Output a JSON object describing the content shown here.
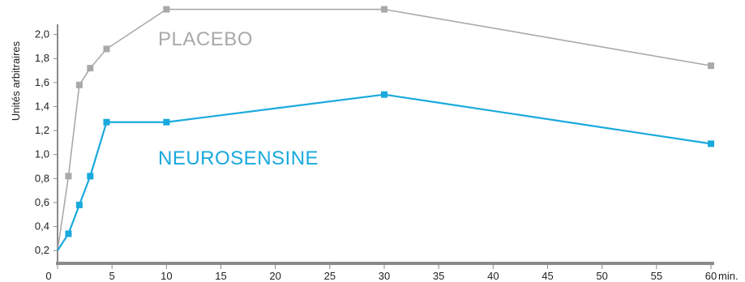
{
  "chart_data": {
    "type": "line",
    "title": "",
    "xlabel": "",
    "x_unit": "min.",
    "ylabel": "Unités arbitraires",
    "xlim": [
      0,
      60
    ],
    "ylim": [
      0.1,
      2.2
    ],
    "x_ticks": [
      "0",
      "5",
      "10",
      "15",
      "20",
      "25",
      "30",
      "35",
      "40",
      "45",
      "50",
      "55",
      "60"
    ],
    "y_ticks": [
      "0,2",
      "0,4",
      "0,6",
      "0,8",
      "1,0",
      "1,2",
      "1,4",
      "1,6",
      "1,8",
      "2,0"
    ],
    "grid": false,
    "legend": "inline labels",
    "series": [
      {
        "name": "PLACEBO",
        "color": "#a9a9a9",
        "x": [
          0,
          1,
          2,
          3,
          4.5,
          10,
          30,
          60
        ],
        "y": [
          0.2,
          0.82,
          1.58,
          1.72,
          1.88,
          2.21,
          2.21,
          1.74
        ]
      },
      {
        "name": "NEUROSENSINE",
        "color": "#19a9dd",
        "x": [
          0,
          1,
          2,
          3,
          4.5,
          10,
          30,
          60
        ],
        "y": [
          0.2,
          0.34,
          0.58,
          0.82,
          1.27,
          1.27,
          1.5,
          1.09
        ]
      }
    ]
  }
}
